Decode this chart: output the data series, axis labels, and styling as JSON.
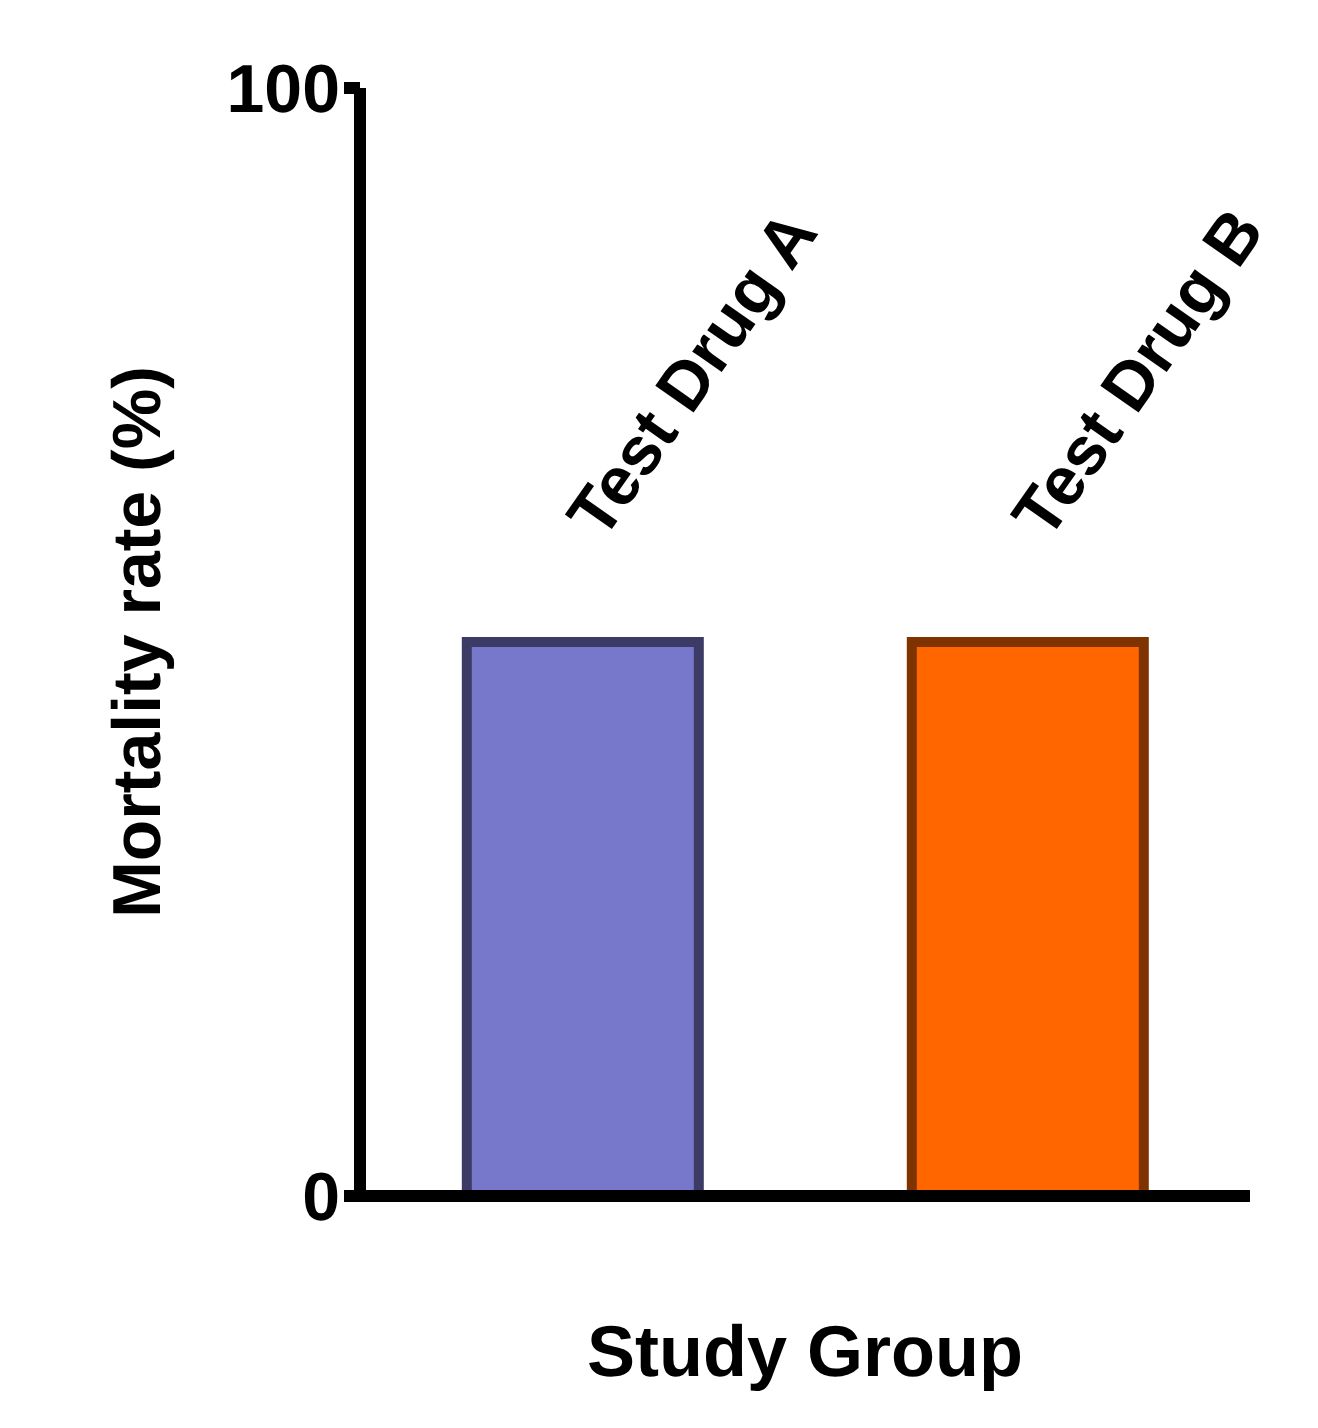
{
  "chart_data": {
    "type": "bar",
    "xlabel": "Study Group",
    "ylabel": "Mortality rate  (%)",
    "categories": [
      "Test Drug A",
      "Test Drug B"
    ],
    "values": [
      50,
      50
    ],
    "colors": [
      "#7777cc",
      "#ff6600"
    ],
    "ylim": [
      0,
      100
    ],
    "yticks": [
      0,
      100
    ]
  }
}
